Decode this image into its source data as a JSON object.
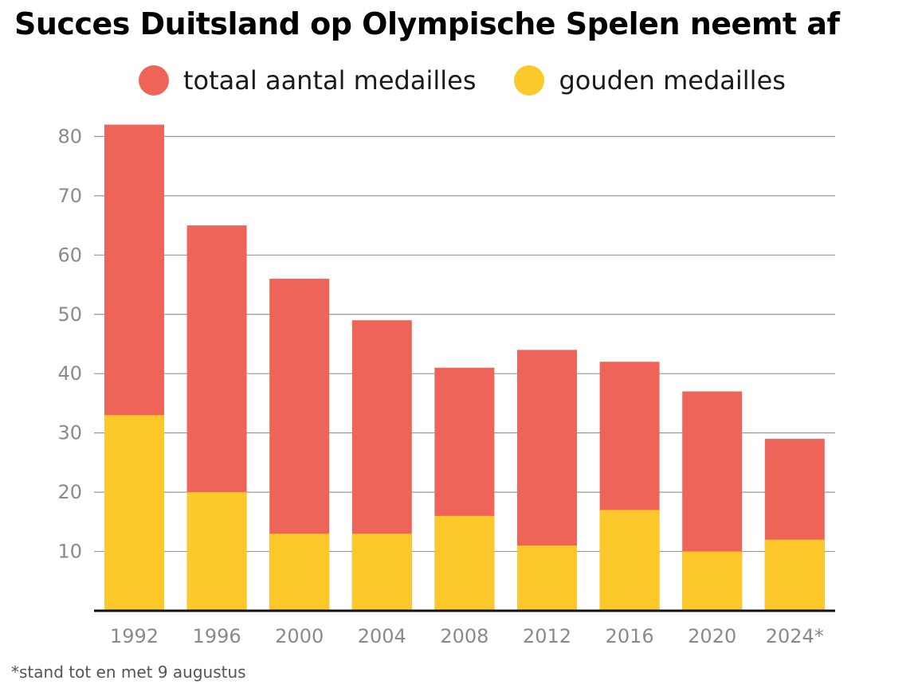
{
  "title": "Succes Duitsland op Olympische Spelen neemt af",
  "footnote": "*stand tot en met 9 augustus",
  "colors": {
    "total": "#ee6459",
    "gold": "#fdc82a",
    "grid": "#9a9a9a",
    "axis": "#111111"
  },
  "chart_data": {
    "type": "bar",
    "title": "Succes Duitsland op Olympische Spelen neemt af",
    "xlabel": "",
    "ylabel": "",
    "categories": [
      "1992",
      "1996",
      "2000",
      "2004",
      "2008",
      "2012",
      "2016",
      "2020",
      "2024*"
    ],
    "series": [
      {
        "name": "totaal aantal medailles",
        "color": "#ee6459",
        "values": [
          82,
          65,
          56,
          49,
          41,
          44,
          42,
          37,
          29
        ]
      },
      {
        "name": "gouden medailles",
        "color": "#fdc82a",
        "values": [
          33,
          20,
          13,
          13,
          16,
          11,
          17,
          10,
          12
        ]
      }
    ],
    "ylim": [
      0,
      80
    ],
    "yticks": [
      10,
      20,
      30,
      40,
      50,
      60,
      70,
      80
    ],
    "grid": true,
    "legend_position": "top"
  }
}
